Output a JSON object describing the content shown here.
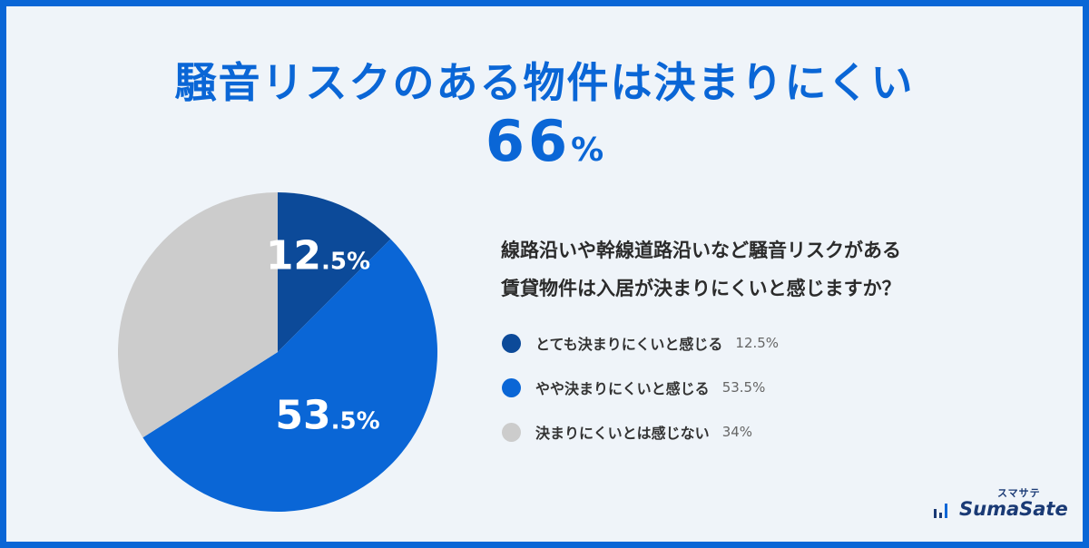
{
  "title": "騒音リスクのある物件は決まりにくい",
  "headline": {
    "number": "66",
    "unit": "%"
  },
  "question": {
    "line1": "線路沿いや幹線道路沿いなど騒音リスクがある",
    "line2": "賃貸物件は入居が決まりにくいと感じますか？"
  },
  "chart_data": {
    "type": "pie",
    "title": "騒音リスクのある物件は決まりにくい",
    "question": "線路沿いや幹線道路沿いなど騒音リスクがある賃貸物件は入居が決まりにくいと感じますか？",
    "categories": [
      "とても決まりにくいと感じる",
      "やや決まりにくいと感じる",
      "決まりにくいとは感じない"
    ],
    "values": [
      12.5,
      53.5,
      34
    ],
    "colors": [
      "#0c4a99",
      "#0a66d6",
      "#cccccc"
    ],
    "slice_labels": [
      {
        "main": "12",
        "decimal": ".5%"
      },
      {
        "main": "53",
        "decimal": ".5%"
      },
      {
        "main": "",
        "decimal": ""
      }
    ],
    "legend": [
      {
        "label": "とても決まりにくいと感じる",
        "value": "12.5%",
        "color": "#0c4a99"
      },
      {
        "label": "やや決まりにくいと感じる",
        "value": "53.5%",
        "color": "#0a66d6"
      },
      {
        "label": "決まりにくいとは感じない",
        "value": "34%",
        "color": "#cccccc"
      }
    ],
    "legend_position": "right",
    "start_angle": "top",
    "direction": "clockwise"
  },
  "logo": {
    "kana": "スマサテ",
    "text": "SumaSate"
  },
  "colors": {
    "background": "#eff4f9",
    "border": "#0a66d6",
    "accent": "#0a66d6",
    "dark": "#0c4a99",
    "gray": "#cccccc"
  },
  "icons": {
    "logo": "bar-chart-icon"
  }
}
